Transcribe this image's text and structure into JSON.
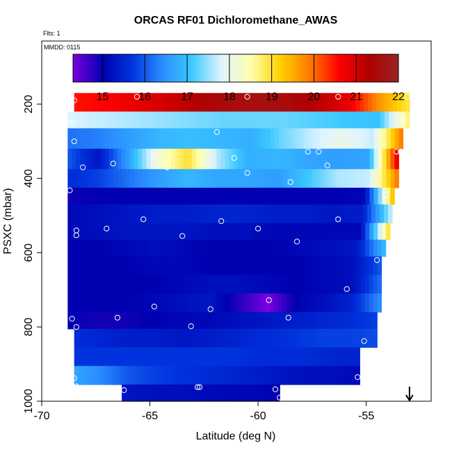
{
  "chart_data": {
    "type": "heatmap",
    "title": "ORCAS RF01 Dichloromethane_AWAS",
    "flights_note": "Flts: 1",
    "date_note": "MMDD: 0115",
    "xlabel": "Latitude (deg N)",
    "ylabel": "PSXC (mbar)",
    "xlim": [
      -70,
      -52
    ],
    "ylim_reversed": [
      1000,
      30
    ],
    "x_ticks": [
      -70,
      -65,
      -60,
      -55
    ],
    "y_ticks": [
      200,
      400,
      600,
      800,
      1000
    ],
    "colorbar": {
      "range": [
        14.3,
        22
      ],
      "ticks": [
        15,
        16,
        17,
        18,
        19,
        20,
        21,
        22
      ],
      "stops": [
        "#7b00e0",
        "#0000b0",
        "#0033dd",
        "#2a8cff",
        "#3ac8ff",
        "#dff4ff",
        "#ffffb0",
        "#ffd200",
        "#ff7a00",
        "#ff0000",
        "#b00000",
        "#9a2525"
      ]
    },
    "arrow_latitude": -53,
    "bands": [
      {
        "p1": 170,
        "p2": 220,
        "lat1": -68.5,
        "lat2": -53.0,
        "values": [
          20.5,
          20.6,
          20.8,
          21.0,
          21.3,
          21.5,
          21.6,
          21.5,
          21.2,
          20.8,
          19.7,
          18.9
        ]
      },
      {
        "p1": 220,
        "p2": 265,
        "lat1": -68.8,
        "lat2": -53.0,
        "values": [
          17.8,
          17.7,
          17.6,
          17.5,
          17.4,
          17.3,
          17.3,
          17.3,
          17.2,
          17.1,
          17.0,
          18.8
        ]
      },
      {
        "p1": 265,
        "p2": 320,
        "lat1": -68.8,
        "lat2": -53.3,
        "values": [
          16.2,
          16.3,
          16.6,
          16.9,
          17.0,
          16.9,
          16.8,
          17.3,
          17.7,
          18.0,
          17.7,
          20.0
        ]
      },
      {
        "p1": 320,
        "p2": 375,
        "lat1": -68.8,
        "lat2": -53.5,
        "values": [
          16.0,
          15.3,
          16.6,
          18.2,
          19.0,
          17.6,
          16.8,
          16.9,
          16.7,
          16.6,
          16.7,
          21.0
        ]
      },
      {
        "p1": 375,
        "p2": 425,
        "lat1": -68.8,
        "lat2": -53.5,
        "values": [
          15.6,
          15.8,
          16.2,
          16.6,
          16.9,
          16.7,
          16.7,
          16.6,
          17.1,
          17.6,
          17.7,
          20.0
        ]
      },
      {
        "p1": 425,
        "p2": 470,
        "lat1": -68.8,
        "lat2": -53.7,
        "values": [
          14.9,
          15.0,
          15.0,
          15.0,
          15.0,
          15.0,
          15.0,
          15.0,
          15.0,
          15.0,
          15.1,
          19.6
        ]
      },
      {
        "p1": 470,
        "p2": 520,
        "lat1": -68.8,
        "lat2": -53.8,
        "values": [
          15.1,
          15.2,
          15.3,
          15.4,
          15.4,
          15.5,
          15.5,
          15.4,
          15.4,
          15.3,
          15.4,
          17.8
        ]
      },
      {
        "p1": 520,
        "p2": 565,
        "lat1": -68.8,
        "lat2": -53.9,
        "values": [
          15.1,
          15.2,
          15.3,
          15.3,
          15.3,
          15.2,
          15.2,
          15.1,
          15.1,
          15.1,
          15.1,
          19.2
        ]
      },
      {
        "p1": 565,
        "p2": 610,
        "lat1": -68.8,
        "lat2": -54.1,
        "values": [
          15.0,
          15.0,
          15.1,
          15.2,
          15.1,
          15.0,
          15.0,
          15.0,
          15.1,
          15.2,
          15.3,
          17.0
        ]
      },
      {
        "p1": 610,
        "p2": 660,
        "lat1": -68.8,
        "lat2": -54.3,
        "values": [
          15.0,
          15.0,
          15.0,
          15.1,
          15.1,
          15.0,
          15.0,
          15.0,
          15.0,
          15.1,
          15.2,
          16.0
        ]
      },
      {
        "p1": 660,
        "p2": 710,
        "lat1": -68.8,
        "lat2": -54.3,
        "values": [
          15.0,
          15.0,
          15.0,
          15.0,
          15.1,
          15.2,
          15.2,
          15.1,
          15.0,
          15.1,
          15.2,
          16.2
        ]
      },
      {
        "p1": 710,
        "p2": 760,
        "lat1": -68.8,
        "lat2": -54.3,
        "values": [
          15.0,
          15.0,
          15.0,
          15.1,
          15.2,
          15.3,
          14.8,
          14.3,
          15.0,
          15.2,
          15.5,
          16.5
        ]
      },
      {
        "p1": 760,
        "p2": 805,
        "lat1": -68.8,
        "lat2": -54.5,
        "values": [
          15.0,
          14.9,
          14.9,
          15.0,
          15.1,
          15.1,
          15.2,
          15.3,
          15.4,
          15.5,
          15.6,
          15.8
        ]
      },
      {
        "p1": 805,
        "p2": 855,
        "lat1": -68.5,
        "lat2": -54.5,
        "values": [
          15.6,
          15.5,
          15.4,
          15.4,
          15.3,
          15.4,
          15.5,
          15.6,
          15.7,
          15.8,
          15.8,
          15.9
        ]
      },
      {
        "p1": 855,
        "p2": 905,
        "lat1": -68.5,
        "lat2": -55.3,
        "values": [
          15.7,
          15.7,
          15.7,
          15.7,
          15.7,
          15.7,
          15.7,
          15.6,
          15.6,
          15.6,
          15.5,
          15.5
        ]
      },
      {
        "p1": 905,
        "p2": 955,
        "lat1": -68.5,
        "lat2": -55.3,
        "values": [
          16.7,
          16.4,
          16.0,
          15.8,
          15.7,
          15.6,
          15.5,
          15.4,
          15.3,
          15.2,
          15.2,
          15.1
        ]
      },
      {
        "p1": 955,
        "p2": 1000,
        "lat1": -66.3,
        "lat2": -59.0,
        "values": [
          15.3,
          15.2,
          15.2,
          15.1,
          15.1,
          15.0
        ]
      }
    ],
    "samples": [
      [
        -68.5,
        190
      ],
      [
        -65.6,
        180
      ],
      [
        -60.5,
        180
      ],
      [
        -56.3,
        180
      ],
      [
        -53.1,
        180
      ],
      [
        -68.6,
        250
      ],
      [
        -61.9,
        275
      ],
      [
        -53.3,
        243
      ],
      [
        -68.5,
        300
      ],
      [
        -57.7,
        328
      ],
      [
        -57.2,
        328
      ],
      [
        -53.6,
        328
      ],
      [
        -53.4,
        328
      ],
      [
        -66.7,
        360
      ],
      [
        -64.8,
        338
      ],
      [
        -61.1,
        345
      ],
      [
        -68.1,
        370
      ],
      [
        -64.2,
        370
      ],
      [
        -60.5,
        385
      ],
      [
        -56.8,
        365
      ],
      [
        -58.5,
        410
      ],
      [
        -68.7,
        432
      ],
      [
        -54.1,
        445
      ],
      [
        -65.3,
        510
      ],
      [
        -61.7,
        515
      ],
      [
        -56.3,
        510
      ],
      [
        -68.4,
        540
      ],
      [
        -68.4,
        553
      ],
      [
        -67.0,
        535
      ],
      [
        -63.5,
        555
      ],
      [
        -60.0,
        535
      ],
      [
        -58.2,
        570
      ],
      [
        -54.5,
        620
      ],
      [
        -55.9,
        698
      ],
      [
        -64.8,
        745
      ],
      [
        -62.2,
        752
      ],
      [
        -59.5,
        728
      ],
      [
        -68.6,
        778
      ],
      [
        -66.5,
        775
      ],
      [
        -58.6,
        775
      ],
      [
        -68.4,
        800
      ],
      [
        -63.1,
        798
      ],
      [
        -55.1,
        838
      ],
      [
        -55.4,
        935
      ],
      [
        -68.5,
        938
      ],
      [
        -68.4,
        960
      ],
      [
        -66.2,
        970
      ],
      [
        -62.8,
        962
      ],
      [
        -62.7,
        962
      ],
      [
        -59.2,
        968
      ],
      [
        -59.0,
        990
      ]
    ]
  }
}
